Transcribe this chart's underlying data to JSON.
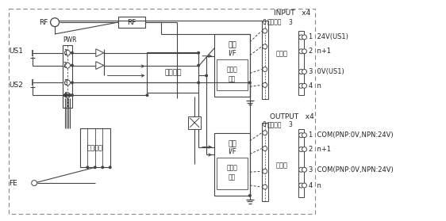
{
  "bg_color": "#ffffff",
  "lc": "#444444",
  "input_label": "INPUT   x4",
  "output_label": "OUTPUT   x4",
  "input_pins": [
    "1  24V(US1)",
    "2  n+1",
    "3  0V(US1)",
    "4  n"
  ],
  "output_pins": [
    "1  COM(PNP:0V,NPN:24V)",
    "2  n+1",
    "3  COM(PNP:0V,NPN:24V)",
    "4  n"
  ]
}
